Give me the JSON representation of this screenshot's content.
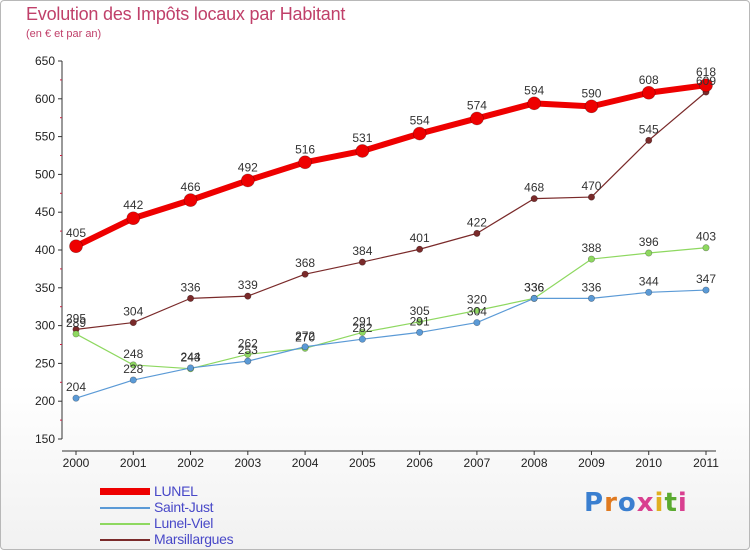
{
  "header": {
    "title": "Evolution des Impôts locaux par Habitant",
    "subtitle": "(en € et par an)"
  },
  "logo": {
    "text": "Proxiti",
    "letters": [
      "P",
      "r",
      "o",
      "x",
      "i",
      "t",
      "i"
    ],
    "colors": [
      "#3a7fd0",
      "#e07a20",
      "#3a7fd0",
      "#d94090",
      "#e0b020",
      "#5aaa30",
      "#d94090"
    ]
  },
  "chart_data": {
    "type": "line",
    "title": "Evolution des Impôts locaux par Habitant",
    "subtitle": "(en € et par an)",
    "xlabel": "",
    "ylabel": "",
    "ylim": [
      150,
      650
    ],
    "yticks": [
      150,
      200,
      250,
      300,
      350,
      400,
      450,
      500,
      550,
      600,
      650
    ],
    "categories": [
      "2000",
      "2001",
      "2002",
      "2003",
      "2004",
      "2005",
      "2006",
      "2007",
      "2008",
      "2009",
      "2010",
      "2011"
    ],
    "grid": false,
    "legend_position": "bottom-left",
    "series": [
      {
        "name": "Marsillargues",
        "color": "#7a2a2a",
        "values": [
          295,
          304,
          336,
          339,
          368,
          384,
          401,
          422,
          468,
          470,
          545,
          609
        ],
        "labels": [
          "295",
          "304",
          "336",
          "339",
          "368",
          "384",
          "401",
          "422",
          "468",
          "470",
          "545",
          "609"
        ]
      },
      {
        "name": "Lunel-Viel",
        "color": "#8ed860",
        "values": [
          289,
          248,
          243,
          262,
          270,
          291,
          305,
          320,
          336,
          388,
          396,
          403
        ],
        "labels": [
          "289",
          "248",
          "243",
          "262",
          "270",
          "291",
          "305",
          "320",
          "336",
          "388",
          "396",
          "403"
        ]
      },
      {
        "name": "Saint-Just",
        "color": "#5b9ad6",
        "values": [
          204,
          228,
          244,
          253,
          272,
          282,
          291,
          304,
          336,
          336,
          344,
          347
        ],
        "labels": [
          "204",
          "228",
          "244",
          "253",
          "272",
          "282",
          "291",
          "304",
          "336",
          "336",
          "344",
          "347"
        ]
      },
      {
        "name": "LUNEL",
        "color": "#ee0000",
        "values": [
          405,
          442,
          466,
          492,
          516,
          531,
          554,
          574,
          594,
          590,
          608,
          618
        ],
        "labels": [
          "405",
          "442",
          "466",
          "492",
          "516",
          "531",
          "554",
          "574",
          "594",
          "590",
          "608",
          "618"
        ]
      }
    ],
    "legend": [
      "LUNEL",
      "Saint-Just",
      "Lunel-Viel",
      "Marsillargues"
    ]
  }
}
